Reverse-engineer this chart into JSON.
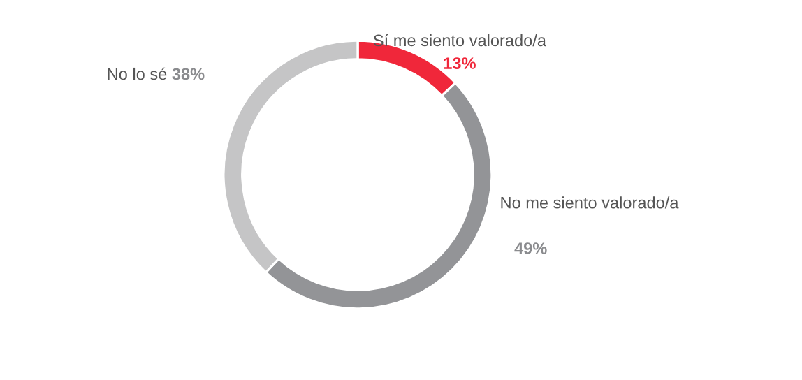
{
  "chart_data": {
    "type": "donut",
    "categories": [
      "Sí me siento valorado/a",
      "No me siento valorado/a",
      "No lo sé"
    ],
    "values": [
      13,
      49,
      38
    ],
    "colors": [
      "#f0273a",
      "#939497",
      "#c5c5c6"
    ],
    "value_labels": [
      "13%",
      "49%",
      "38%"
    ],
    "legend": false
  }
}
